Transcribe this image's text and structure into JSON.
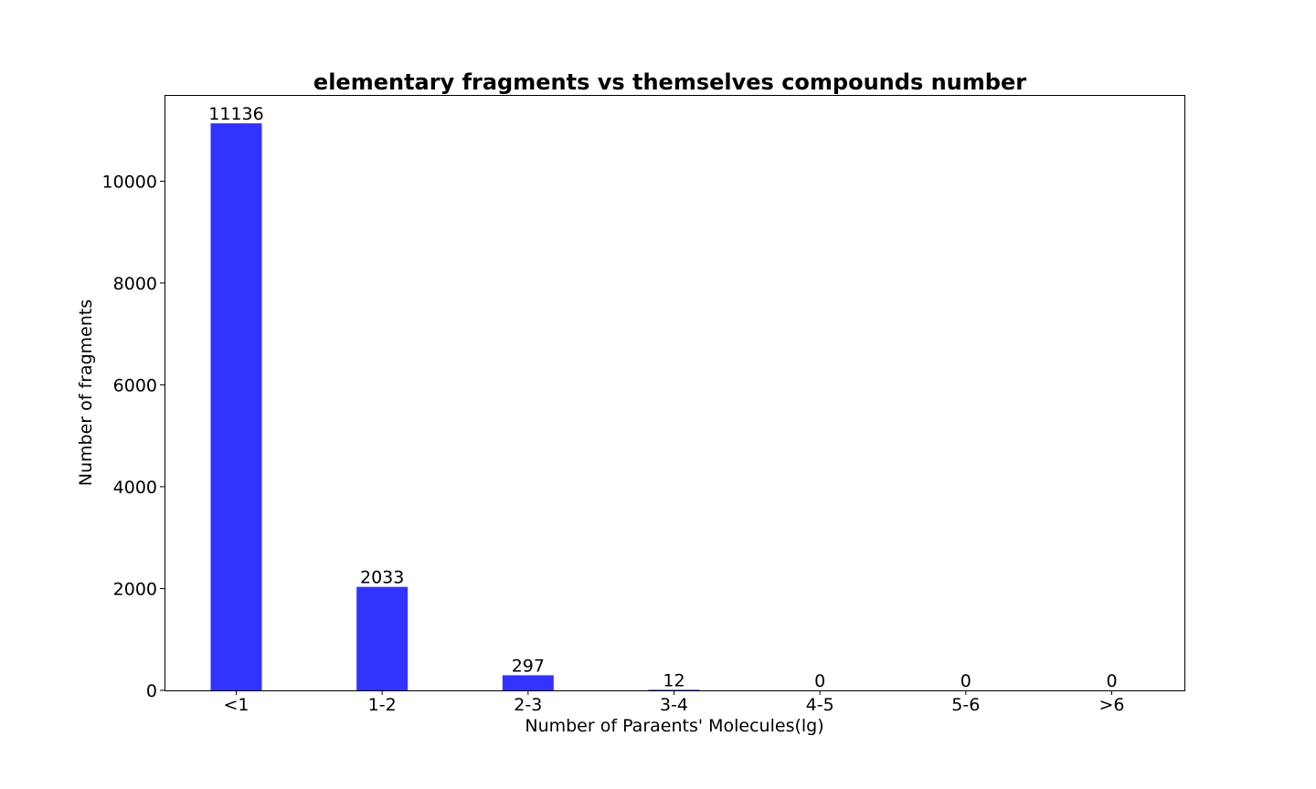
{
  "chart_data": {
    "type": "bar",
    "title": "elementary fragments vs themselves compounds number",
    "xlabel": "Number of Paraents' Molecules(lg)",
    "ylabel": "Number of fragments",
    "categories": [
      "<1",
      "1-2",
      "2-3",
      "3-4",
      "4-5",
      "5-6",
      ">6"
    ],
    "values": [
      11136,
      2033,
      297,
      12,
      0,
      0,
      0
    ],
    "data_labels": [
      "11136",
      "2033",
      "297",
      "12",
      "0",
      "0",
      "0"
    ],
    "ylim": [
      0,
      11693
    ],
    "yticks": [
      0,
      2000,
      4000,
      6000,
      8000,
      10000
    ],
    "ytick_labels": [
      "0",
      "2000",
      "4000",
      "6000",
      "8000",
      "10000"
    ],
    "grid": false,
    "bar_color": "#3333ff"
  }
}
